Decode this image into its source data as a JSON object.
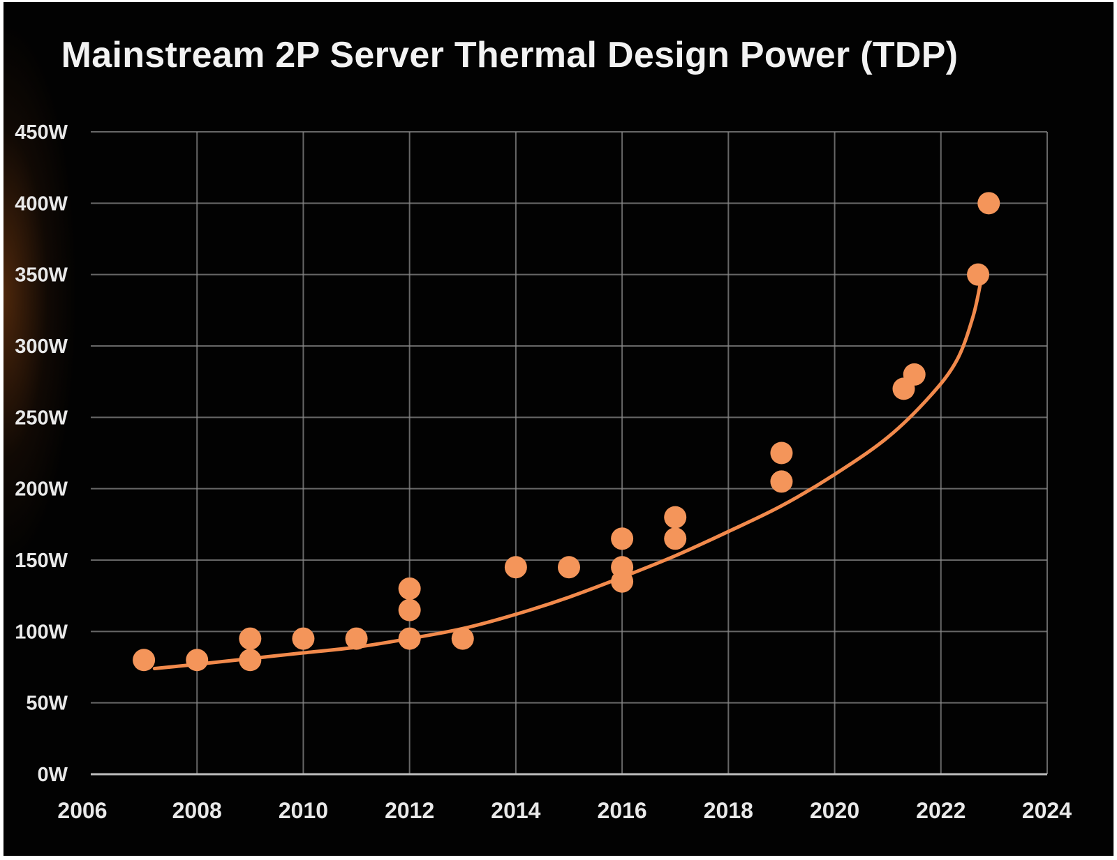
{
  "chart_data": {
    "type": "scatter",
    "title": "Mainstream 2P Server Thermal Design Power (TDP)",
    "xlabel": "",
    "ylabel": "",
    "xlim": [
      2006,
      2024
    ],
    "ylim": [
      0,
      450
    ],
    "x_ticks": [
      2006,
      2008,
      2010,
      2012,
      2014,
      2016,
      2018,
      2020,
      2022,
      2024
    ],
    "x_tick_labels": [
      "2006",
      "2008",
      "2010",
      "2012",
      "2014",
      "2016",
      "2018",
      "2020",
      "2022",
      "2024"
    ],
    "y_ticks": [
      0,
      50,
      100,
      150,
      200,
      250,
      300,
      350,
      400,
      450
    ],
    "y_tick_labels": [
      "0W",
      "50W",
      "100W",
      "150W",
      "200W",
      "250W",
      "300W",
      "350W",
      "400W",
      "450W"
    ],
    "grid": true,
    "legend": "none",
    "series": [
      {
        "points": [
          {
            "x": 2007,
            "y": 80
          },
          {
            "x": 2008,
            "y": 80
          },
          {
            "x": 2009,
            "y": 80
          },
          {
            "x": 2009,
            "y": 95
          },
          {
            "x": 2010,
            "y": 95
          },
          {
            "x": 2011,
            "y": 95
          },
          {
            "x": 2012,
            "y": 95
          },
          {
            "x": 2012,
            "y": 115
          },
          {
            "x": 2012,
            "y": 130
          },
          {
            "x": 2013,
            "y": 95
          },
          {
            "x": 2014,
            "y": 145
          },
          {
            "x": 2015,
            "y": 145
          },
          {
            "x": 2016,
            "y": 135
          },
          {
            "x": 2016,
            "y": 145
          },
          {
            "x": 2016,
            "y": 165
          },
          {
            "x": 2017,
            "y": 165
          },
          {
            "x": 2017,
            "y": 180
          },
          {
            "x": 2019,
            "y": 205
          },
          {
            "x": 2019,
            "y": 225
          },
          {
            "x": 2021.3,
            "y": 270
          },
          {
            "x": 2021.5,
            "y": 280
          },
          {
            "x": 2022.7,
            "y": 350
          },
          {
            "x": 2022.9,
            "y": 400
          }
        ]
      }
    ],
    "trend_line": [
      [
        2007.2,
        74
      ],
      [
        2008,
        77
      ],
      [
        2009,
        81
      ],
      [
        2010,
        85
      ],
      [
        2011,
        89
      ],
      [
        2012,
        95
      ],
      [
        2013,
        102
      ],
      [
        2014,
        112
      ],
      [
        2015,
        124
      ],
      [
        2016,
        138
      ],
      [
        2017,
        153
      ],
      [
        2018,
        170
      ],
      [
        2019,
        188
      ],
      [
        2020,
        210
      ],
      [
        2021,
        236
      ],
      [
        2021.8,
        265
      ],
      [
        2022.3,
        290
      ],
      [
        2022.6,
        320
      ],
      [
        2022.75,
        345
      ]
    ],
    "colors": {
      "background": "#020202",
      "point": "#f4955a",
      "trend": "#f28a4c",
      "grid": "#8a8a8a",
      "text": "#e9e9e9"
    }
  }
}
